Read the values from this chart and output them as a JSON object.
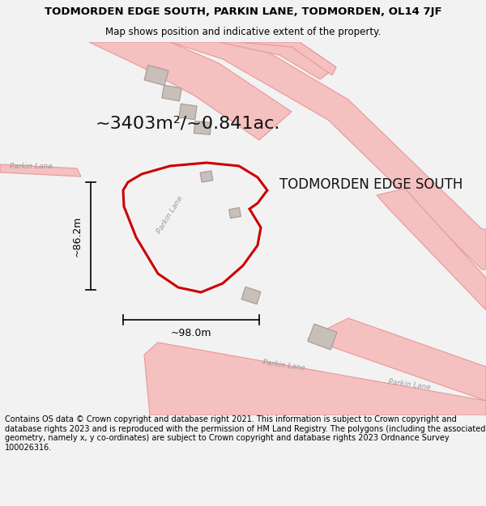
{
  "title_line1": "TODMORDEN EDGE SOUTH, PARKIN LANE, TODMORDEN, OL14 7JF",
  "title_line2": "Map shows position and indicative extent of the property.",
  "area_label": "~3403m²/~0.841ac.",
  "property_name": "TODMORDEN EDGE SOUTH",
  "dim_width": "~98.0m",
  "dim_height": "~86.2m",
  "road_label": "Parkin Lane",
  "footer": "Contains OS data © Crown copyright and database right 2021. This information is subject to Crown copyright and database rights 2023 and is reproduced with the permission of HM Land Registry. The polygons (including the associated geometry, namely x, y co-ordinates) are subject to Crown copyright and database rights 2023 Ordnance Survey 100026316.",
  "bg_color": "#f2f2f2",
  "map_bg": "#ffffff",
  "road_color": "#f5c0c0",
  "road_edge_color": "#e89898",
  "building_color": "#c8bfb8",
  "building_edge": "#a89898",
  "property_color": "#cc0000",
  "dim_color": "#000000",
  "text_color": "#111111",
  "road_text_color": "#999999",
  "title_fontsize": 9.5,
  "subtitle_fontsize": 8.5,
  "area_fontsize": 16,
  "property_name_fontsize": 12,
  "footer_fontsize": 7.0,
  "road_label_fontsize": 6.5
}
